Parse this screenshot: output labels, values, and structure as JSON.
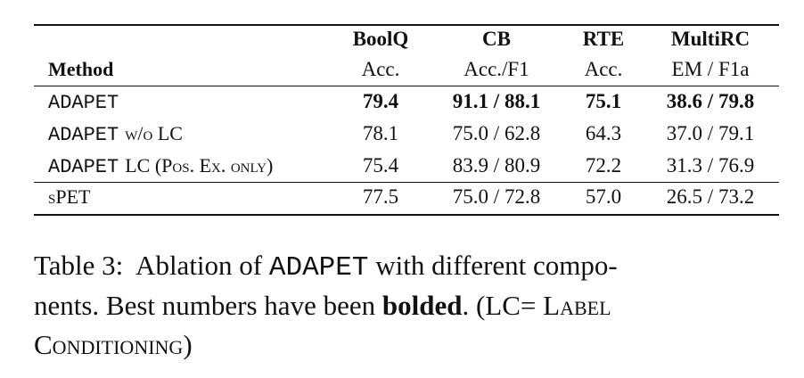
{
  "table": {
    "columns": [
      {
        "top": "BoolQ",
        "sub": "Acc."
      },
      {
        "top": "CB",
        "sub": "Acc./F1"
      },
      {
        "top": "RTE",
        "sub": "Acc."
      },
      {
        "top": "MultiRC",
        "sub": "EM / F1a"
      }
    ],
    "method_header": "Method",
    "rows": [
      {
        "method": [
          "ADAPET"
        ],
        "cells": [
          "79.4",
          "91.1 / 88.1",
          "75.1",
          "38.6 / 79.8"
        ]
      },
      {
        "method": [
          "ADAPET",
          "w/o LC"
        ],
        "cells": [
          "78.1",
          "75.0 / 62.8",
          "64.3",
          "37.0 / 79.1"
        ]
      },
      {
        "method": [
          "ADAPET",
          "LC (Pos. Ex. only)"
        ],
        "cells": [
          "75.4",
          "83.9 / 80.9",
          "72.2",
          "31.3 / 76.9"
        ]
      },
      {
        "method": [
          "sPET"
        ],
        "cells": [
          "77.5",
          "75.0 / 72.8",
          "57.0",
          "26.5 / 73.2"
        ]
      }
    ]
  },
  "caption": {
    "lines": [
      [
        "Table 3:  Ablation of ",
        "ADAPET",
        " with different compo-"
      ],
      [
        "nents. Best numbers have been ",
        "bolded",
        ". (LC= ",
        "Label"
      ],
      [
        "Conditioning",
        ")"
      ]
    ]
  }
}
